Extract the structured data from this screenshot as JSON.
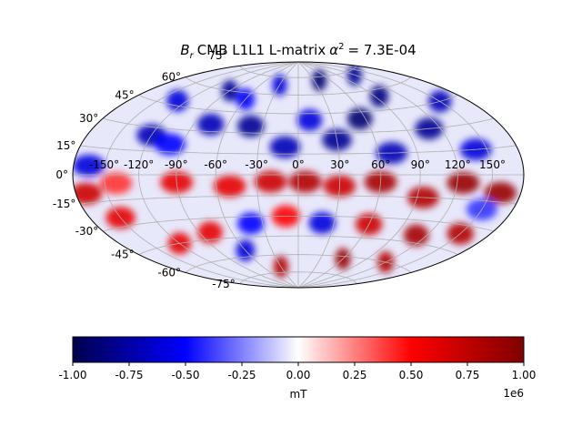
{
  "chart_data": {
    "type": "heatmap",
    "projection": "hammer",
    "title": {
      "symbol": "B",
      "subscript": "r",
      "text": "CMB L1L1 L-matrix",
      "alpha_symbol": "α",
      "alpha_exponent": "2",
      "value": "= 7.3E-04"
    },
    "latitude_ticks": {
      "left": [
        "60°",
        "45°",
        "30°",
        "15°",
        "0°",
        "-15°",
        "-30°",
        "-45°",
        "-60°",
        "-75°"
      ],
      "left_values": [
        60,
        45,
        30,
        15,
        0,
        -15,
        -30,
        -45,
        -60,
        -75
      ],
      "top": "75°"
    },
    "longitude_ticks": {
      "labels": [
        "-150°",
        "-120°",
        "-90°",
        "-60°",
        "-30°",
        "0°",
        "30°",
        "60°",
        "90°",
        "120°",
        "150°"
      ],
      "values": [
        -150,
        -120,
        -90,
        -60,
        -30,
        0,
        30,
        60,
        90,
        120,
        150
      ]
    },
    "grid": true,
    "colormap": "seismic",
    "colorbar": {
      "orientation": "horizontal",
      "placement": "bottom",
      "vmin": -1.0,
      "vmax": 1.0,
      "ticks": [
        "-1.00",
        "-0.75",
        "-0.50",
        "-0.25",
        "0.00",
        "0.25",
        "0.50",
        "0.75",
        "1.00"
      ],
      "tick_values": [
        -1.0,
        -0.75,
        -0.5,
        -0.25,
        0.0,
        0.25,
        0.5,
        0.75,
        1.0
      ],
      "label": "mT",
      "offset_text": "1e6"
    },
    "blobs": [
      {
        "lon": -165,
        "lat": 5,
        "value": -0.6
      },
      {
        "lon": -150,
        "lat": -25,
        "value": 0.6
      },
      {
        "lon": -170,
        "lat": -10,
        "value": 0.7
      },
      {
        "lon": -120,
        "lat": 25,
        "value": -0.7
      },
      {
        "lon": -130,
        "lat": 48,
        "value": -0.6
      },
      {
        "lon": -90,
        "lat": 60,
        "value": -0.8
      },
      {
        "lon": -60,
        "lat": 55,
        "value": -0.5
      },
      {
        "lon": -75,
        "lat": 35,
        "value": -0.7
      },
      {
        "lon": -40,
        "lat": 35,
        "value": -0.8
      },
      {
        "lon": -10,
        "lat": 20,
        "value": -0.7
      },
      {
        "lon": 10,
        "lat": 40,
        "value": -0.6
      },
      {
        "lon": 30,
        "lat": 25,
        "value": -0.8
      },
      {
        "lon": 55,
        "lat": 40,
        "value": -0.9
      },
      {
        "lon": 70,
        "lat": 15,
        "value": -0.7
      },
      {
        "lon": 95,
        "lat": 55,
        "value": -0.85
      },
      {
        "lon": 110,
        "lat": 30,
        "value": -0.8
      },
      {
        "lon": 140,
        "lat": 15,
        "value": -0.6
      },
      {
        "lon": 150,
        "lat": 45,
        "value": -0.7
      },
      {
        "lon": 40,
        "lat": 72,
        "value": -0.9
      },
      {
        "lon": 120,
        "lat": 72,
        "value": -0.8
      },
      {
        "lon": -30,
        "lat": 68,
        "value": -0.6
      },
      {
        "lon": -100,
        "lat": 20,
        "value": -0.5
      },
      {
        "lon": -90,
        "lat": -5,
        "value": 0.6
      },
      {
        "lon": -50,
        "lat": -8,
        "value": 0.6
      },
      {
        "lon": -20,
        "lat": -5,
        "value": 0.7
      },
      {
        "lon": 5,
        "lat": -5,
        "value": 0.8
      },
      {
        "lon": 30,
        "lat": -8,
        "value": 0.7
      },
      {
        "lon": 60,
        "lat": -5,
        "value": 0.85
      },
      {
        "lon": 95,
        "lat": -15,
        "value": 0.8
      },
      {
        "lon": 125,
        "lat": -5,
        "value": 0.9
      },
      {
        "lon": 160,
        "lat": -10,
        "value": 0.9
      },
      {
        "lon": 150,
        "lat": -35,
        "value": 0.8
      },
      {
        "lon": 110,
        "lat": -40,
        "value": 0.85
      },
      {
        "lon": 60,
        "lat": -35,
        "value": 0.7
      },
      {
        "lon": 20,
        "lat": -35,
        "value": -0.6
      },
      {
        "lon": -10,
        "lat": -30,
        "value": 0.5
      },
      {
        "lon": -40,
        "lat": -35,
        "value": -0.5
      },
      {
        "lon": -80,
        "lat": -40,
        "value": 0.6
      },
      {
        "lon": -120,
        "lat": -45,
        "value": 0.6
      },
      {
        "lon": -60,
        "lat": -55,
        "value": -0.6
      },
      {
        "lon": -30,
        "lat": -70,
        "value": 0.8
      },
      {
        "lon": 60,
        "lat": -62,
        "value": 0.9
      },
      {
        "lon": 120,
        "lat": -60,
        "value": 0.8
      },
      {
        "lon": 150,
        "lat": -20,
        "value": -0.4
      },
      {
        "lon": -140,
        "lat": -5,
        "value": 0.4
      }
    ]
  }
}
